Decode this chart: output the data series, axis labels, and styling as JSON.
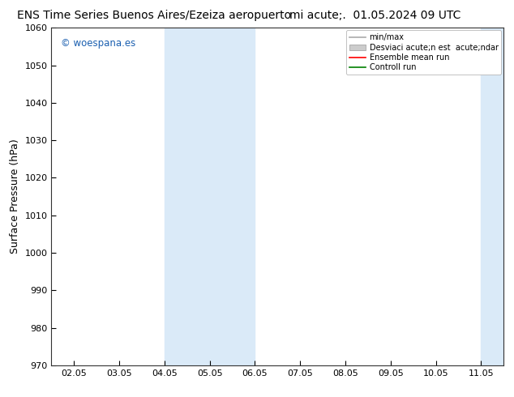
{
  "title_left": "ENS Time Series Buenos Aires/Ezeiza aeropuerto",
  "title_right": "mi acute;. 01.05.2024 09 UTC",
  "ylabel": "Surface Pressure (hPa)",
  "ylim": [
    970,
    1060
  ],
  "yticks": [
    970,
    980,
    990,
    1000,
    1010,
    1020,
    1030,
    1040,
    1050,
    1060
  ],
  "xtick_labels": [
    "02.05",
    "03.05",
    "04.05",
    "05.05",
    "06.05",
    "07.05",
    "08.05",
    "09.05",
    "10.05",
    "11.05"
  ],
  "shaded_regions": [
    {
      "xstart": 2,
      "xend": 4,
      "color": "#daeaf8"
    },
    {
      "xstart": 9,
      "xend": 10,
      "color": "#daeaf8"
    }
  ],
  "watermark": "© woespana.es",
  "watermark_color": "#1a5fb0",
  "background_color": "#ffffff",
  "plot_bg_color": "#ffffff",
  "legend_entries": [
    {
      "label": "min/max",
      "color": "#aaaaaa",
      "lw": 1.2,
      "type": "line"
    },
    {
      "label": "Desviaci acute;n est  acute;ndar",
      "color": "#cccccc",
      "type": "fill"
    },
    {
      "label": "Ensemble mean run",
      "color": "red",
      "lw": 1.2,
      "type": "line"
    },
    {
      "label": "Controll run",
      "color": "green",
      "lw": 1.2,
      "type": "line"
    }
  ],
  "title_fontsize": 10,
  "tick_fontsize": 8,
  "ylabel_fontsize": 9,
  "fig_width": 6.34,
  "fig_height": 4.9,
  "dpi": 100
}
